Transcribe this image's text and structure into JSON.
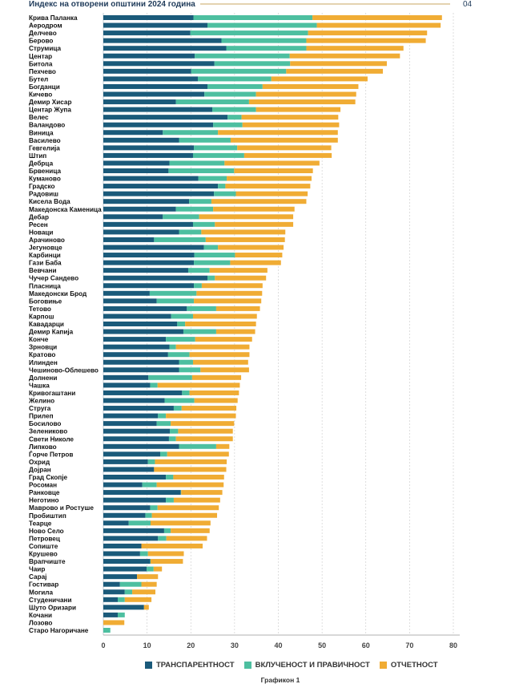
{
  "header": {
    "title": "Индекс на отворени општини 2024 година",
    "page_number": "04"
  },
  "caption": "Графикон 1",
  "chart_data": {
    "type": "bar",
    "orientation": "horizontal",
    "stacked": true,
    "xlim": [
      0,
      80
    ],
    "x_ticks": [
      "0",
      "10",
      "20",
      "30",
      "40",
      "50",
      "60",
      "70",
      "80"
    ],
    "grid": true,
    "legend_position": "bottom",
    "categories": [
      "Крива Паланка",
      "Аеродром",
      "Делчево",
      "Берово",
      "Струмица",
      "Центар",
      "Битола",
      "Пехчево",
      "Бутел",
      "Богданци",
      "Кичево",
      "Демир Хисар",
      "Центар Жупа",
      "Велес",
      "Валандово",
      "Виница",
      "Василево",
      "Гевгелија",
      "Штип",
      "Дебрца",
      "Брвеница",
      "Куманово",
      "Градско",
      "Радовиш",
      "Кисела Вода",
      "Македонска Каменица",
      "Дебар",
      "Ресен",
      "Новаци",
      "Арачиново",
      "Јегуновце",
      "Карбинци",
      "Гази Баба",
      "Вевчани",
      "Чучер Сандево",
      "Пласница",
      "Македонски Брод",
      "Боговиње",
      "Тетово",
      "Карпош",
      "Кавадарци",
      "Демир Капија",
      "Конче",
      "Зрновци",
      "Кратово",
      "Илинден",
      "Чешиново-Облешево",
      "Долнени",
      "Чашка",
      "Кривогаштани",
      "Желино",
      "Струга",
      "Прилеп",
      "Босилово",
      "Зелениково",
      "Свети Николе",
      "Липково",
      "Ѓорче Петров",
      "Охрид",
      "Дојран",
      "Град Скопје",
      "Росоман",
      "Ранковце",
      "Неготино",
      "Маврово и Ростуше",
      "Пробиштип",
      "Теарце",
      "Ново Село",
      "Петровец",
      "Сопиште",
      "Крушево",
      "Врапчиште",
      "Чаир",
      "Сарај",
      "Гостивар",
      "Могила",
      "Студеничани",
      "Шуто Оризари",
      "Кочани",
      "Лозово",
      "Старо Нагоричане"
    ],
    "series": [
      {
        "name": "ТРАНСПАРЕНТНОСТ",
        "color": "#1a5a7a",
        "values": [
          20.6,
          23.8,
          19.9,
          27.0,
          28.1,
          20.9,
          25.4,
          20.1,
          21.6,
          23.8,
          23.1,
          16.6,
          24.9,
          28.4,
          25.1,
          13.6,
          17.3,
          20.7,
          20.5,
          15.1,
          14.9,
          21.7,
          26.2,
          25.3,
          19.6,
          16.6,
          13.6,
          20.5,
          17.3,
          11.6,
          23.0,
          20.8,
          20.7,
          19.4,
          23.8,
          20.7,
          10.6,
          12.2,
          19.1,
          15.5,
          16.9,
          18.3,
          14.3,
          15.1,
          14.8,
          17.3,
          17.3,
          10.3,
          10.7,
          18.0,
          14.0,
          16.1,
          12.5,
          12.2,
          15.2,
          15.0,
          17.3,
          13.0,
          10.2,
          11.6,
          14.3,
          8.9,
          17.7,
          14.3,
          10.7,
          9.6,
          5.8,
          13.9,
          12.5,
          8.7,
          8.4,
          10.7,
          9.9,
          7.7,
          3.8,
          4.9,
          3.3,
          9.3,
          3.3,
          0,
          0
        ]
      },
      {
        "name": "ВКЛУЧЕНОСТ И ПРАВИЧНОСТ",
        "color": "#4dbfa0",
        "values": [
          27.2,
          25.0,
          26.9,
          19.4,
          18.3,
          21.7,
          17.3,
          21.7,
          16.8,
          12.6,
          11.8,
          16.7,
          10.0,
          3.2,
          6.7,
          12.6,
          11.8,
          9.9,
          11.7,
          12.6,
          15.0,
          6.5,
          1.7,
          5.0,
          5.1,
          8.5,
          8.3,
          5.0,
          5.1,
          11.8,
          3.2,
          9.3,
          8.3,
          4.9,
          1.7,
          1.8,
          10.7,
          8.5,
          6.7,
          5.0,
          1.8,
          7.5,
          6.7,
          1.5,
          4.9,
          3.2,
          4.9,
          10.0,
          1.7,
          1.7,
          6.8,
          1.8,
          1.8,
          3.2,
          1.9,
          1.6,
          8.5,
          1.6,
          1.6,
          0,
          1.7,
          3.3,
          0.1,
          1.8,
          1.7,
          1.5,
          5.0,
          1.5,
          1.9,
          0,
          1.8,
          0.1,
          1.6,
          0,
          4.9,
          1.7,
          1.6,
          0,
          1.6,
          0,
          1.6
        ]
      },
      {
        "name": "ОТЧЕТНОСТ",
        "color": "#f0ac34",
        "values": [
          29.6,
          28.3,
          27.2,
          27.3,
          22.2,
          25.2,
          22.1,
          22.1,
          22.0,
          21.9,
          22.9,
          24.3,
          19.3,
          22.1,
          22.1,
          27.4,
          24.5,
          21.5,
          20.0,
          21.7,
          18.0,
          19.4,
          19.4,
          16.4,
          21.7,
          18.6,
          21.5,
          17.9,
          19.2,
          18.1,
          15.0,
          10.8,
          11.6,
          13.2,
          11.7,
          13.9,
          15.0,
          15.4,
          10.0,
          14.6,
          16.2,
          8.9,
          13.0,
          16.8,
          13.7,
          12.6,
          11.1,
          11.2,
          18.8,
          11.3,
          9.9,
          12.5,
          16.0,
          14.5,
          12.5,
          13.0,
          3.0,
          14.1,
          16.4,
          16.5,
          11.6,
          15.3,
          9.4,
          10.6,
          14.0,
          14.9,
          13.7,
          8.9,
          9.3,
          14.0,
          8.2,
          7.4,
          1.9,
          4.8,
          3.5,
          5.3,
          6.1,
          1.1,
          0,
          4.8,
          0
        ]
      }
    ]
  }
}
